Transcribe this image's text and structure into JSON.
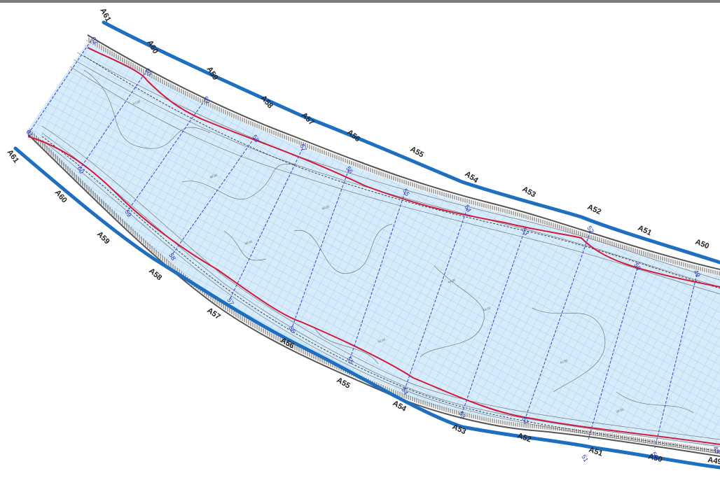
{
  "map": {
    "left_bank_labels": [
      "A61",
      "A60",
      "A59",
      "A58",
      "A57",
      "A56",
      "A55",
      "A54",
      "A53",
      "A52",
      "A51",
      "A50"
    ],
    "right_bank_labels": [
      "A61",
      "A60",
      "A59",
      "A58",
      "A57",
      "A56",
      "A55",
      "A54",
      "A53",
      "A52",
      "A51",
      "A50",
      "A49"
    ],
    "section_labels_top": [
      "62",
      "60",
      "59",
      "58",
      "57",
      "56",
      "55",
      "54",
      "53",
      "52",
      "50",
      "49"
    ],
    "section_labels_bottom": [
      "61",
      "60",
      "59",
      "58",
      "57",
      "56",
      "55",
      "54",
      "53",
      "52",
      "51",
      "50",
      "49"
    ],
    "elevation_labels": [
      "47.00",
      "46.00",
      "45.00",
      "44.00",
      "43.00",
      "42.00",
      "41.00",
      "40.00",
      "39.00"
    ],
    "colors": {
      "bank_line": "#1f6fc1",
      "channel_fill": "#d6ecfa",
      "grid": "#8fb6e0",
      "red_line": "#d21a3a",
      "contour": "#7a7a7a",
      "section_line": "#3a44c4",
      "levee": "#555555"
    }
  }
}
